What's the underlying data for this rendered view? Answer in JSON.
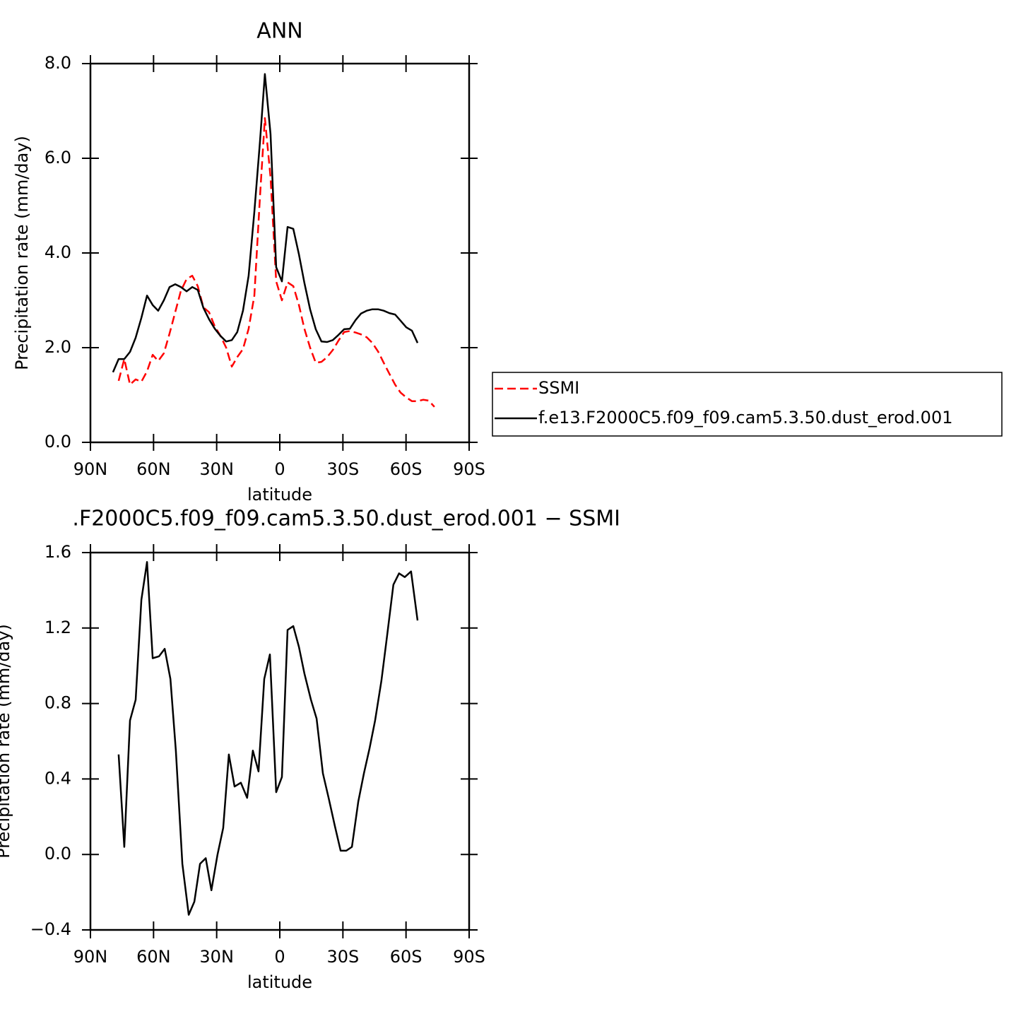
{
  "chart_data": [
    {
      "type": "line",
      "title": "ANN",
      "xlabel": "latitude",
      "ylabel": "Precipitation rate (mm/day)",
      "x": [
        79.3,
        76.6,
        73.9,
        71.2,
        68.5,
        65.8,
        63.1,
        60.4,
        57.8,
        55.1,
        52.4,
        49.7,
        47.0,
        44.3,
        41.6,
        39.0,
        36.3,
        33.6,
        30.9,
        28.2,
        25.5,
        22.8,
        20.2,
        17.5,
        14.8,
        12.1,
        9.4,
        7.1,
        4.4,
        1.7,
        -1.0,
        -3.7,
        -6.4,
        -9.1,
        -11.7,
        -14.4,
        -17.1,
        -19.8,
        -22.5,
        -25.2,
        -27.9,
        -30.6,
        -33.3,
        -36.0,
        -38.6,
        -41.3,
        -44.0,
        -46.7,
        -49.4,
        -52.1,
        -54.8,
        -57.4,
        -60.1,
        -62.8,
        -65.5,
        -68.2,
        -70.8,
        -73.5
      ],
      "series": [
        {
          "name": "SSMI",
          "color": "#ff0000",
          "line_style": "dashed",
          "values": [
            null,
            1.3,
            1.76,
            1.22,
            1.33,
            1.28,
            1.5,
            1.85,
            1.72,
            1.88,
            2.3,
            2.75,
            3.2,
            3.45,
            3.52,
            3.3,
            2.85,
            2.75,
            2.45,
            2.25,
            2.0,
            1.6,
            1.8,
            1.97,
            2.4,
            3.1,
            5.2,
            6.85,
            5.6,
            3.4,
            3.0,
            3.38,
            3.3,
            2.9,
            2.4,
            2.0,
            1.68,
            1.7,
            1.8,
            1.95,
            2.15,
            2.33,
            2.35,
            2.32,
            2.28,
            2.22,
            2.1,
            1.92,
            1.68,
            1.45,
            1.22,
            1.05,
            0.95,
            0.87,
            0.87,
            0.9,
            0.88,
            0.75
          ]
        },
        {
          "name": "f.e13.F2000C5.f09_f09.cam5.3.50.dust_erod.001",
          "color": "#000000",
          "line_style": "solid",
          "values": [
            1.48,
            1.76,
            1.76,
            1.91,
            2.21,
            2.63,
            3.1,
            2.9,
            2.78,
            3.0,
            3.28,
            3.34,
            3.28,
            3.19,
            3.28,
            3.22,
            2.84,
            2.6,
            2.4,
            2.25,
            2.13,
            2.16,
            2.33,
            2.78,
            3.52,
            4.87,
            6.36,
            7.78,
            6.51,
            3.7,
            3.4,
            4.55,
            4.51,
            3.97,
            3.37,
            2.81,
            2.39,
            2.13,
            2.12,
            2.16,
            2.27,
            2.39,
            2.4,
            2.58,
            2.72,
            2.78,
            2.81,
            2.81,
            2.78,
            2.73,
            2.7,
            2.57,
            2.43,
            2.36,
            2.1,
            null,
            null,
            null
          ]
        }
      ],
      "xlim": [
        90,
        -90
      ],
      "xticks": [
        {
          "value": 90,
          "label": "90N"
        },
        {
          "value": 60,
          "label": "60N"
        },
        {
          "value": 30,
          "label": "30N"
        },
        0,
        {
          "value": -30,
          "label": "30S"
        },
        {
          "value": -60,
          "label": "60S"
        },
        {
          "value": -90,
          "label": "90S"
        }
      ],
      "ylim": [
        0,
        8
      ],
      "yticks": [
        {
          "value": 0,
          "label": "0.0"
        },
        {
          "value": 2,
          "label": "2.0"
        },
        {
          "value": 4,
          "label": "4.0"
        },
        {
          "value": 6,
          "label": "6.0"
        },
        {
          "value": 8,
          "label": "8.0"
        }
      ],
      "legend": "right"
    },
    {
      "type": "line",
      "title": ".F2000C5.f09_f09.cam5.3.50.dust_erod.001 − SSMI",
      "xlabel": "latitude",
      "ylabel": "Precipitation rate (mm/day)",
      "x": [
        76.6,
        73.9,
        71.2,
        68.5,
        65.8,
        63.1,
        60.4,
        57.4,
        54.7,
        52.0,
        49.4,
        46.3,
        43.3,
        40.6,
        37.9,
        35.2,
        32.5,
        29.6,
        26.9,
        24.2,
        21.5,
        18.5,
        15.5,
        12.8,
        10.1,
        7.4,
        4.7,
        1.7,
        -1.0,
        -3.7,
        -6.4,
        -9.1,
        -11.7,
        -14.8,
        -17.5,
        -20.5,
        -23.2,
        -26.2,
        -28.9,
        -31.6,
        -34.3,
        -37.3,
        -40.0,
        -42.6,
        -45.3,
        -48.3,
        -51.0,
        -54.0,
        -56.7,
        -59.4,
        -62.4,
        -65.5
      ],
      "series": [
        {
          "color": "#000000",
          "line_style": "solid",
          "values": [
            0.53,
            0.04,
            0.71,
            0.82,
            1.35,
            1.55,
            1.04,
            1.05,
            1.09,
            0.93,
            0.55,
            -0.05,
            -0.32,
            -0.25,
            -0.05,
            -0.02,
            -0.19,
            0.0,
            0.14,
            0.53,
            0.36,
            0.38,
            0.3,
            0.55,
            0.44,
            0.93,
            1.06,
            0.33,
            0.41,
            1.19,
            1.21,
            1.1,
            0.96,
            0.82,
            0.72,
            0.43,
            0.3,
            0.15,
            0.02,
            0.02,
            0.04,
            0.28,
            0.43,
            0.56,
            0.71,
            0.92,
            1.16,
            1.43,
            1.49,
            1.47,
            1.5,
            1.24
          ]
        }
      ],
      "xlim": [
        90,
        -90
      ],
      "xticks": [
        {
          "value": 90,
          "label": "90N"
        },
        {
          "value": 60,
          "label": "60N"
        },
        {
          "value": 30,
          "label": "30N"
        },
        0,
        {
          "value": -30,
          "label": "30S"
        },
        {
          "value": -60,
          "label": "60S"
        },
        {
          "value": -90,
          "label": "90S"
        }
      ],
      "ylim": [
        -0.4,
        1.6
      ],
      "yticks": [
        {
          "value": -0.4,
          "label": "−0.4"
        },
        {
          "value": 0,
          "label": "0.0"
        },
        {
          "value": 0.4,
          "label": "0.4"
        },
        {
          "value": 0.8,
          "label": "0.8"
        },
        {
          "value": 1.2,
          "label": "1.2"
        },
        {
          "value": 1.6,
          "label": "1.6"
        }
      ]
    }
  ]
}
